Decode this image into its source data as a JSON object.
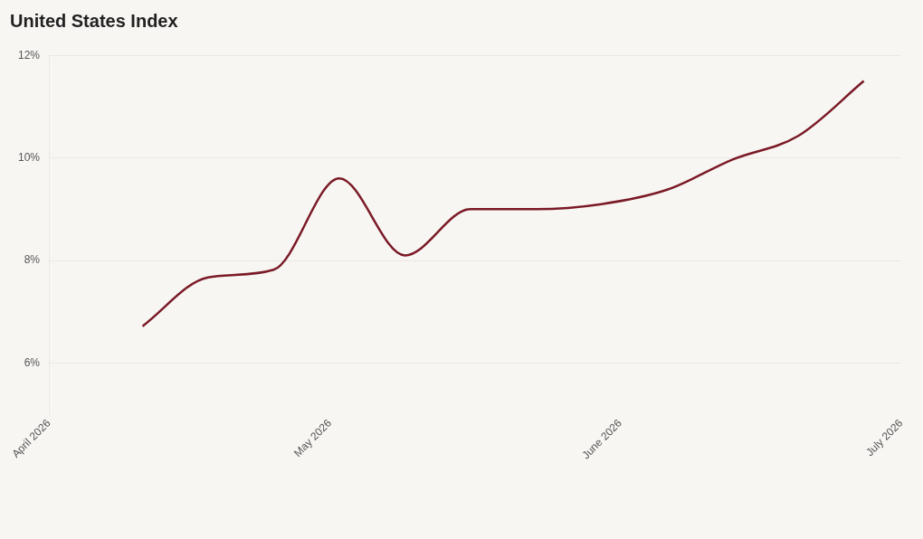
{
  "chart_data": {
    "type": "line",
    "title": "United States Index",
    "x": [
      "2026-04-11",
      "2026-04-18",
      "2026-04-25",
      "2026-05-02",
      "2026-05-09",
      "2026-05-16",
      "2026-05-23",
      "2026-05-30",
      "2026-06-06",
      "2026-06-13",
      "2026-06-20",
      "2026-06-27"
    ],
    "series": [
      {
        "color": "#7a1a26",
        "values": [
          6.72,
          7.67,
          7.82,
          9.6,
          8.1,
          9.0,
          9.0,
          9.1,
          9.38,
          9.97,
          10.43,
          11.5
        ]
      }
    ],
    "xlim": [
      "2026-04-01",
      "2026-07-01"
    ],
    "xticks": [
      {
        "value": "2026-04-01",
        "label": "April 2026"
      },
      {
        "value": "2026-05-01",
        "label": "May 2026"
      },
      {
        "value": "2026-06-01",
        "label": "June 2026"
      },
      {
        "value": "2026-07-01",
        "label": "July 2026"
      }
    ],
    "ylim": [
      5,
      12
    ],
    "yticks": [
      {
        "value": 6,
        "label": "6%"
      },
      {
        "value": 8,
        "label": "8%"
      },
      {
        "value": 10,
        "label": "10%"
      },
      {
        "value": 12,
        "label": "12%"
      }
    ],
    "grid": "y",
    "legend": false,
    "marker": "none",
    "line_style": "solid"
  }
}
